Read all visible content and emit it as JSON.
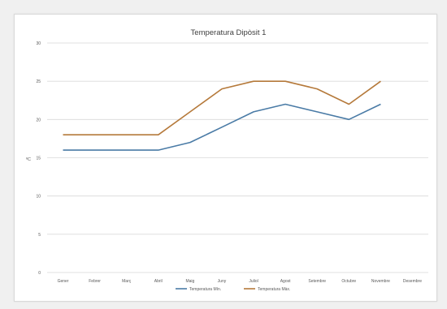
{
  "chart_data": {
    "type": "line",
    "title": "Temperatura Dipòsit 1",
    "ylabel": "ºC",
    "ylim": [
      0,
      30
    ],
    "yticks": [
      "0",
      "5",
      "10",
      "15",
      "20",
      "25",
      "30"
    ],
    "grid": true,
    "legend_position": "bottom",
    "categories": [
      "Gener",
      "Febrer",
      "Març",
      "Abril",
      "Maig",
      "Juny",
      "Juliol",
      "Agost",
      "Setembre",
      "Octubre",
      "Novembre",
      "Desembre"
    ],
    "series": [
      {
        "name": "Temperatura Mín.",
        "color": "#4a7ba6",
        "values": [
          16,
          16,
          16,
          16,
          17,
          19,
          21,
          22,
          21,
          20,
          22,
          null
        ]
      },
      {
        "name": "Temperatura Màx.",
        "color": "#b5793a",
        "values": [
          18,
          18,
          18,
          18,
          21,
          24,
          25,
          25,
          24,
          22,
          25,
          null
        ]
      }
    ]
  }
}
